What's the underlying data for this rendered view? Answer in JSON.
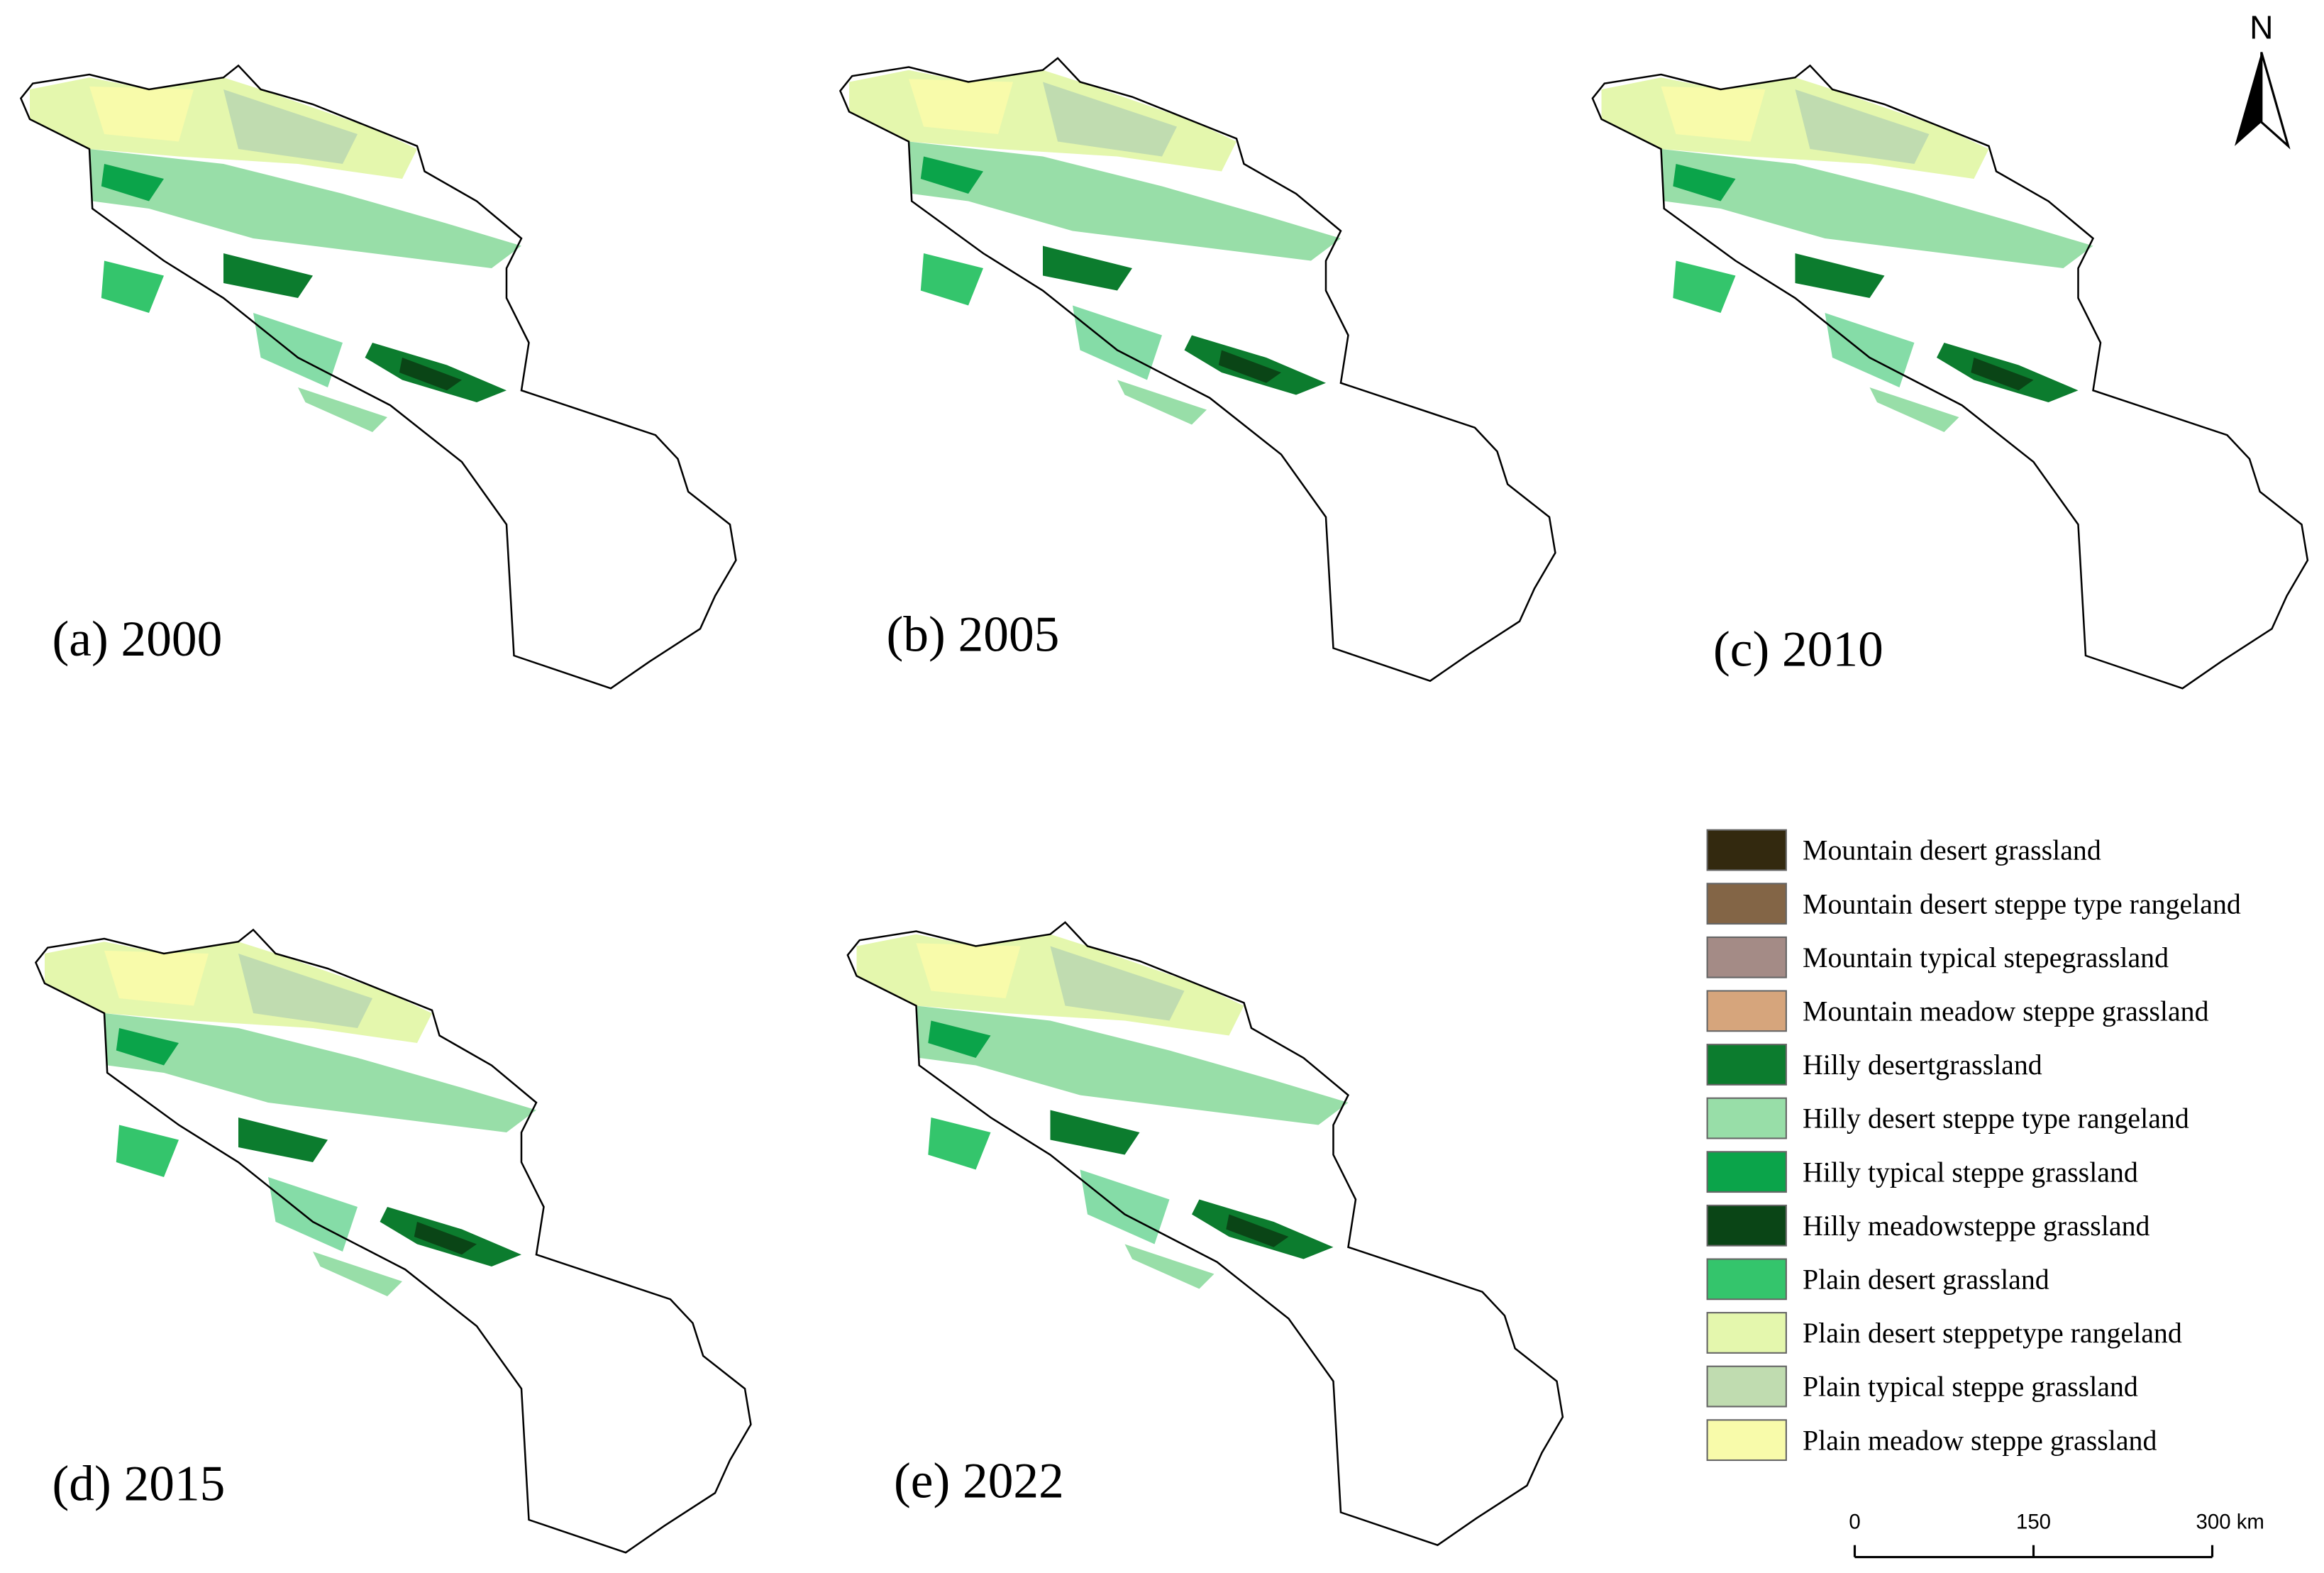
{
  "panels": [
    {
      "label": "(a) 2000"
    },
    {
      "label": "(b) 2005"
    },
    {
      "label": "(c) 2010"
    },
    {
      "label": "(d) 2015"
    },
    {
      "label": "(e) 2022"
    }
  ],
  "legend": [
    {
      "label": "Mountain desert grassland",
      "color": "#33290f"
    },
    {
      "label": "Mountain desert steppe type rangeland",
      "color": "#836546"
    },
    {
      "label": "Mountain typical stepegrassland",
      "color": "#a48b86"
    },
    {
      "label": "Mountain meadow steppe grassland",
      "color": "#d6a57c"
    },
    {
      "label": "Hilly desertgrassland",
      "color": "#0c7c2e"
    },
    {
      "label": "Hilly desert steppe type rangeland",
      "color": "#98dea8"
    },
    {
      "label": "Hilly typical steppe grassland",
      "color": "#0ba44a"
    },
    {
      "label": "Hilly meadowsteppe grassland",
      "color": "#0a4516"
    },
    {
      "label": "Plain desert grassland",
      "color": "#34c56c"
    },
    {
      "label": "Plain desert steppetype rangeland",
      "color": "#e4f7ad"
    },
    {
      "label": "Plain typical steppe grassland",
      "color": "#c0dcb0"
    },
    {
      "label": "Plain meadow steppe grassland",
      "color": "#f8fbaa"
    }
  ],
  "north_label": "N",
  "scale_bar": {
    "ticks": [
      0,
      150,
      {
        "value": 300,
        "label": "300 km"
      }
    ]
  }
}
